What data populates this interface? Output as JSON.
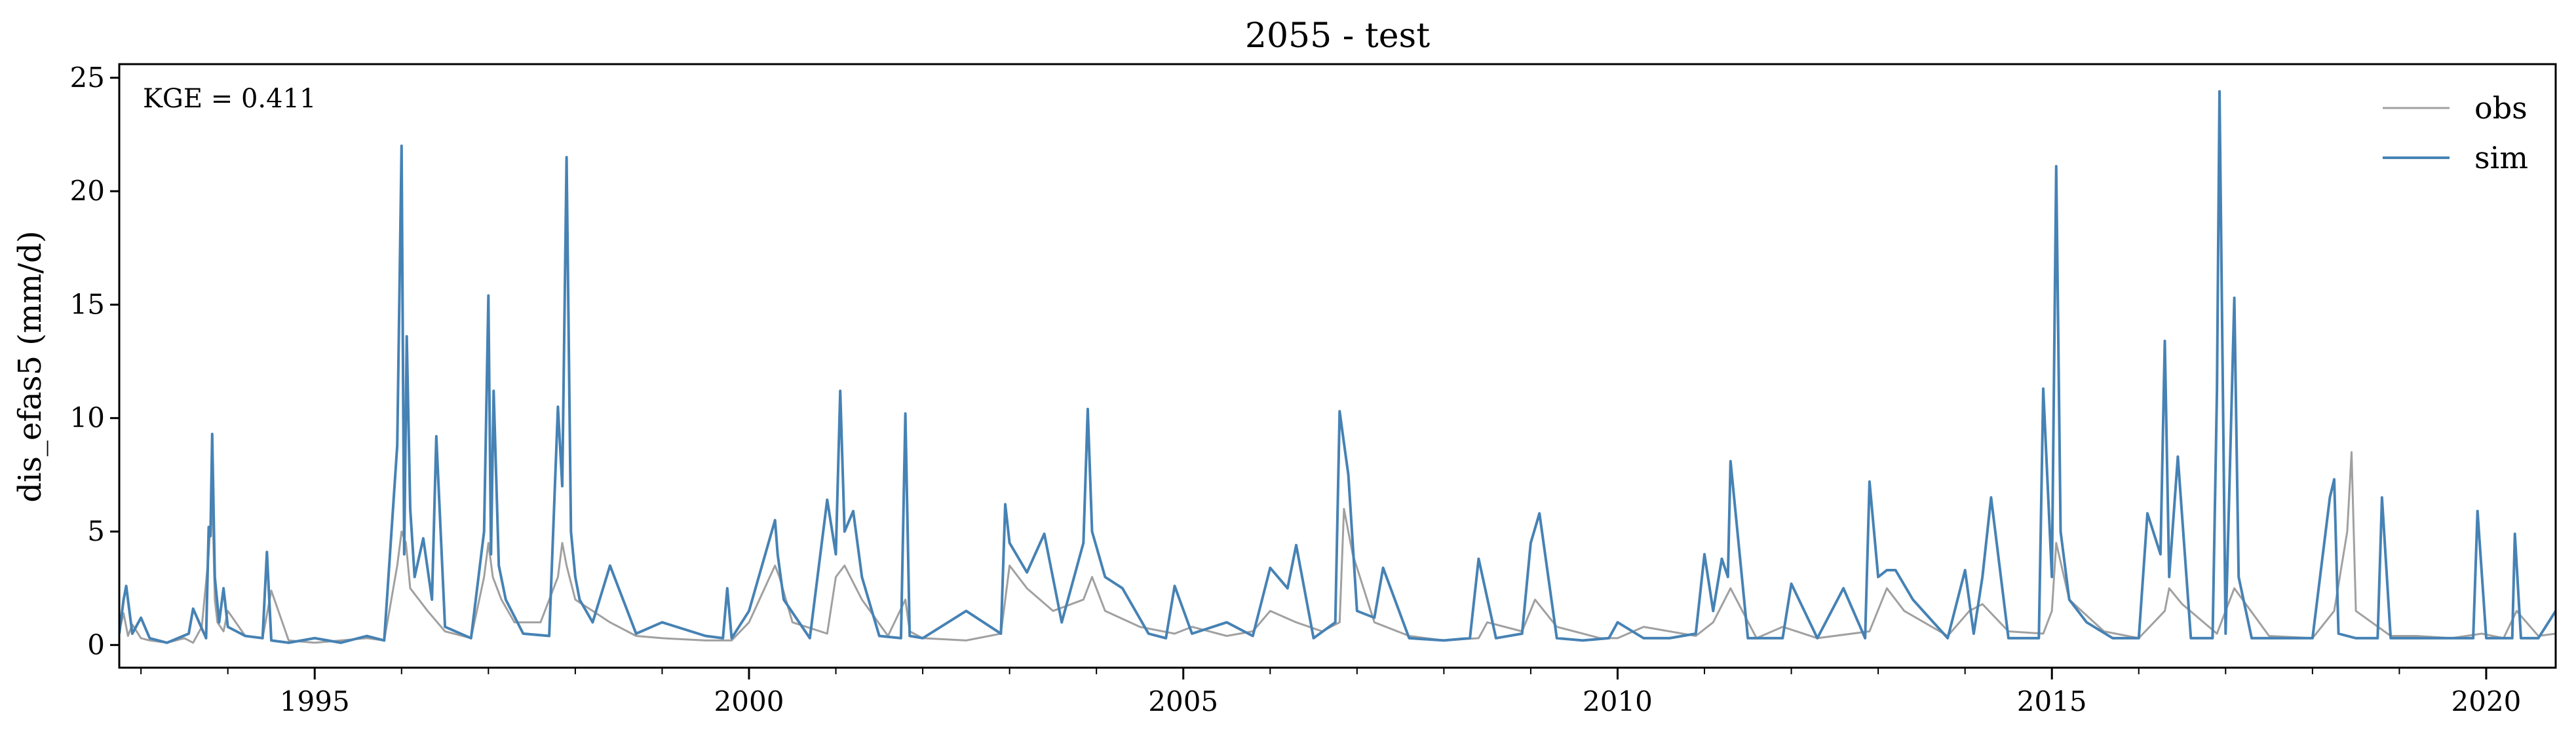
{
  "chart_data": {
    "type": "line",
    "title": "2055 - test",
    "xlabel": "",
    "ylabel": "dis_efas5 (mm/d)",
    "annotation": "KGE = 0.411",
    "xlim": [
      1992.75,
      2020.8
    ],
    "ylim": [
      -1.0,
      25.6
    ],
    "yticks": [
      0,
      5,
      10,
      15,
      20,
      25
    ],
    "xticks": [
      1995,
      2000,
      2005,
      2010,
      2015,
      2020
    ],
    "grid": false,
    "legend": {
      "placement": "top-right"
    },
    "series": [
      {
        "name": "obs",
        "color": "#a0a0a0",
        "x": [
          1992.75,
          1992.8,
          1992.85,
          1992.9,
          1993.0,
          1993.1,
          1993.3,
          1993.5,
          1993.6,
          1993.7,
          1993.78,
          1993.82,
          1993.85,
          1993.88,
          1993.95,
          1994.0,
          1994.2,
          1994.4,
          1994.5,
          1994.7,
          1995.0,
          1995.3,
          1995.6,
          1995.8,
          1995.95,
          1996.0,
          1996.05,
          1996.1,
          1996.2,
          1996.3,
          1996.5,
          1996.8,
          1996.95,
          1997.0,
          1997.05,
          1997.15,
          1997.3,
          1997.6,
          1997.8,
          1997.85,
          1997.9,
          1998.0,
          1998.2,
          1998.4,
          1998.7,
          1999.0,
          1999.5,
          1999.8,
          2000.0,
          2000.3,
          2000.35,
          2000.5,
          2000.9,
          2001.0,
          2001.1,
          2001.3,
          2001.6,
          2001.8,
          2001.85,
          2002.0,
          2002.5,
          2002.9,
          2003.0,
          2003.2,
          2003.5,
          2003.85,
          2003.95,
          2004.1,
          2004.5,
          2004.9,
          2005.1,
          2005.5,
          2005.8,
          2006.0,
          2006.3,
          2006.6,
          2006.8,
          2006.85,
          2006.95,
          2007.2,
          2007.6,
          2008.0,
          2008.4,
          2008.5,
          2008.9,
          2009.05,
          2009.3,
          2009.8,
          2010.0,
          2010.3,
          2010.9,
          2011.1,
          2011.3,
          2011.6,
          2011.9,
          2012.3,
          2012.9,
          2013.1,
          2013.3,
          2013.8,
          2014.05,
          2014.2,
          2014.5,
          2014.9,
          2015.0,
          2015.05,
          2015.2,
          2015.6,
          2016.0,
          2016.3,
          2016.35,
          2016.5,
          2016.9,
          2016.95,
          2017.1,
          2017.5,
          2018.0,
          2018.25,
          2018.4,
          2018.45,
          2018.5,
          2018.9,
          2019.2,
          2019.6,
          2019.95,
          2020.2,
          2020.35,
          2020.6,
          2020.8
        ],
        "y": [
          0.6,
          1.4,
          0.4,
          0.9,
          0.3,
          0.2,
          0.1,
          0.3,
          0.1,
          0.8,
          4.0,
          6.8,
          2.0,
          1.0,
          0.6,
          1.5,
          0.4,
          0.3,
          2.4,
          0.2,
          0.1,
          0.2,
          0.3,
          0.2,
          3.5,
          5.0,
          4.5,
          2.5,
          2.0,
          1.5,
          0.6,
          0.3,
          3.0,
          4.5,
          3.0,
          2.0,
          1.0,
          1.0,
          3.0,
          4.5,
          3.5,
          2.0,
          1.5,
          1.0,
          0.4,
          0.3,
          0.2,
          0.2,
          1.0,
          3.5,
          3.0,
          1.0,
          0.5,
          3.0,
          3.5,
          2.0,
          0.4,
          2.0,
          0.6,
          0.3,
          0.2,
          0.5,
          3.5,
          2.5,
          1.5,
          2.0,
          3.0,
          1.5,
          0.8,
          0.5,
          0.8,
          0.4,
          0.6,
          1.5,
          1.0,
          0.6,
          1.0,
          6.0,
          4.0,
          1.0,
          0.4,
          0.2,
          0.3,
          1.0,
          0.6,
          2.0,
          0.8,
          0.3,
          0.3,
          0.8,
          0.4,
          1.0,
          2.5,
          0.3,
          0.8,
          0.3,
          0.6,
          2.5,
          1.5,
          0.4,
          1.5,
          1.8,
          0.6,
          0.5,
          1.5,
          4.5,
          2.0,
          0.6,
          0.3,
          1.5,
          2.5,
          1.8,
          0.5,
          1.0,
          2.5,
          0.4,
          0.3,
          1.5,
          5.0,
          8.5,
          1.5,
          0.4,
          0.4,
          0.3,
          0.5,
          0.3,
          1.5,
          0.4,
          0.5
        ]
      },
      {
        "name": "sim",
        "color": "#4682b4",
        "x": [
          1992.75,
          1992.8,
          1992.83,
          1992.9,
          1993.0,
          1993.1,
          1993.3,
          1993.55,
          1993.6,
          1993.75,
          1993.78,
          1993.8,
          1993.82,
          1993.85,
          1993.9,
          1993.95,
          1994.0,
          1994.2,
          1994.4,
          1994.45,
          1994.5,
          1994.7,
          1995.0,
          1995.3,
          1995.6,
          1995.8,
          1995.95,
          1996.0,
          1996.03,
          1996.06,
          1996.1,
          1996.15,
          1996.25,
          1996.35,
          1996.4,
          1996.5,
          1996.8,
          1996.95,
          1997.0,
          1997.03,
          1997.06,
          1997.12,
          1997.2,
          1997.4,
          1997.7,
          1997.8,
          1997.85,
          1997.9,
          1997.95,
          1998.0,
          1998.05,
          1998.2,
          1998.4,
          1998.7,
          1999.0,
          1999.5,
          1999.7,
          1999.75,
          1999.8,
          2000.0,
          2000.3,
          2000.33,
          2000.4,
          2000.7,
          2000.9,
          2001.0,
          2001.05,
          2001.1,
          2001.2,
          2001.3,
          2001.5,
          2001.75,
          2001.8,
          2001.85,
          2002.0,
          2002.5,
          2002.9,
          2002.95,
          2003.0,
          2003.2,
          2003.4,
          2003.6,
          2003.85,
          2003.9,
          2003.95,
          2004.1,
          2004.3,
          2004.6,
          2004.8,
          2004.9,
          2005.1,
          2005.5,
          2005.8,
          2006.0,
          2006.2,
          2006.3,
          2006.5,
          2006.75,
          2006.8,
          2006.85,
          2006.9,
          2007.0,
          2007.2,
          2007.3,
          2007.6,
          2008.0,
          2008.3,
          2008.4,
          2008.6,
          2008.9,
          2009.0,
          2009.1,
          2009.3,
          2009.6,
          2009.9,
          2010.0,
          2010.3,
          2010.6,
          2010.9,
          2011.0,
          2011.1,
          2011.2,
          2011.27,
          2011.3,
          2011.5,
          2011.9,
          2012.0,
          2012.3,
          2012.6,
          2012.85,
          2012.9,
          2013.0,
          2013.1,
          2013.2,
          2013.4,
          2013.8,
          2014.0,
          2014.1,
          2014.2,
          2014.3,
          2014.5,
          2014.85,
          2014.9,
          2015.0,
          2015.05,
          2015.1,
          2015.2,
          2015.4,
          2015.7,
          2016.0,
          2016.1,
          2016.25,
          2016.3,
          2016.35,
          2016.45,
          2016.6,
          2016.85,
          2016.9,
          2016.93,
          2017.0,
          2017.1,
          2017.15,
          2017.3,
          2017.6,
          2018.0,
          2018.2,
          2018.25,
          2018.3,
          2018.5,
          2018.75,
          2018.8,
          2018.9,
          2019.3,
          2019.7,
          2019.85,
          2019.9,
          2020.0,
          2020.3,
          2020.33,
          2020.4,
          2020.6,
          2020.8
        ],
        "y": [
          0.5,
          2.0,
          2.6,
          0.5,
          1.2,
          0.3,
          0.1,
          0.5,
          1.6,
          0.3,
          5.2,
          4.8,
          9.3,
          3.0,
          1.0,
          2.5,
          0.8,
          0.4,
          0.3,
          4.1,
          0.2,
          0.1,
          0.3,
          0.1,
          0.4,
          0.2,
          8.8,
          22.0,
          4.0,
          13.6,
          6.0,
          3.0,
          4.7,
          2.0,
          9.2,
          0.8,
          0.3,
          5.0,
          15.4,
          4.0,
          11.2,
          3.5,
          2.0,
          0.5,
          0.4,
          10.5,
          7.0,
          21.5,
          5.0,
          3.0,
          2.0,
          1.0,
          3.5,
          0.5,
          1.0,
          0.4,
          0.3,
          2.5,
          0.3,
          1.5,
          5.5,
          4.0,
          2.0,
          0.3,
          6.4,
          4.0,
          11.2,
          5.0,
          5.9,
          3.0,
          0.4,
          0.3,
          10.2,
          0.4,
          0.3,
          1.5,
          0.5,
          6.2,
          4.5,
          3.2,
          4.9,
          1.0,
          4.5,
          10.4,
          5.0,
          3.0,
          2.5,
          0.5,
          0.3,
          2.6,
          0.5,
          1.0,
          0.4,
          3.4,
          2.5,
          4.4,
          0.3,
          1.0,
          10.3,
          8.9,
          7.5,
          1.5,
          1.2,
          3.4,
          0.3,
          0.2,
          0.3,
          3.8,
          0.3,
          0.5,
          4.5,
          5.8,
          0.3,
          0.2,
          0.3,
          1.0,
          0.3,
          0.3,
          0.5,
          4.0,
          1.5,
          3.8,
          3.0,
          8.1,
          0.3,
          0.3,
          2.7,
          0.3,
          2.5,
          0.3,
          7.2,
          3.0,
          3.3,
          3.3,
          2.0,
          0.3,
          3.3,
          0.5,
          3.0,
          6.5,
          0.3,
          0.3,
          11.3,
          3.0,
          21.1,
          5.0,
          2.0,
          1.0,
          0.3,
          0.3,
          5.8,
          4.0,
          13.4,
          3.0,
          8.3,
          0.3,
          0.3,
          11.2,
          24.4,
          0.5,
          15.3,
          3.0,
          0.3,
          0.3,
          0.3,
          6.5,
          7.3,
          0.5,
          0.3,
          0.3,
          6.5,
          0.3,
          0.3,
          0.3,
          0.3,
          5.9,
          0.3,
          0.3,
          4.9,
          0.3,
          0.3,
          1.5
        ]
      }
    ]
  }
}
